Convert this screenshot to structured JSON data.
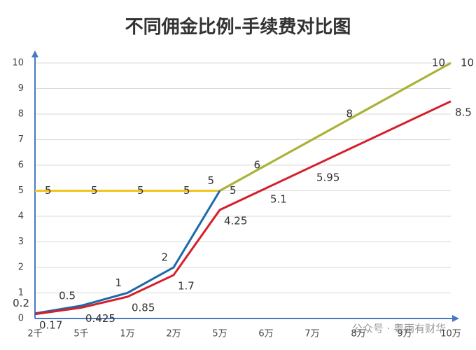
{
  "chart_data": {
    "type": "line",
    "title": "不同佣金比例-手续费对比图",
    "categories": [
      "2千",
      "5千",
      "1万",
      "2万",
      "5万",
      "6万",
      "7万",
      "8万",
      "9万",
      "10万"
    ],
    "series": [
      {
        "color": "#f2c51b",
        "values": [
          5,
          5,
          5,
          5,
          5,
          6,
          7,
          8,
          9,
          10
        ],
        "value_labels": [
          "5",
          "5",
          "5",
          "5",
          "5",
          null,
          null,
          null,
          null,
          "10"
        ]
      },
      {
        "color": "#a8b23a",
        "values": [
          null,
          null,
          null,
          null,
          5,
          6,
          7,
          8,
          9,
          10
        ],
        "value_labels": [
          null,
          null,
          null,
          null,
          null,
          "6",
          null,
          "8",
          null,
          "10"
        ]
      },
      {
        "color": "#1c6aab",
        "values": [
          0.2,
          0.5,
          1,
          2,
          5,
          null,
          null,
          null,
          null,
          null
        ],
        "value_labels": [
          "0.2",
          "0.5",
          "1",
          "2",
          "5",
          null,
          null,
          null,
          null,
          null
        ]
      },
      {
        "color": "#d4202c",
        "values": [
          0.17,
          0.425,
          0.85,
          1.7,
          4.25,
          5.1,
          5.95,
          6.8,
          7.65,
          8.5
        ],
        "value_labels": [
          "0.17",
          "0.425",
          "0.85",
          "1.7",
          "4.25",
          "5.1",
          "5.95",
          null,
          null,
          "8.5"
        ]
      }
    ],
    "ylim": [
      0,
      10
    ],
    "yticks": [
      0,
      1,
      2,
      3,
      4,
      5,
      6,
      7,
      8,
      9,
      10
    ],
    "grid": true,
    "axis_color": "#4a78c2",
    "watermark": "公众号 · 粤雨有财华"
  }
}
